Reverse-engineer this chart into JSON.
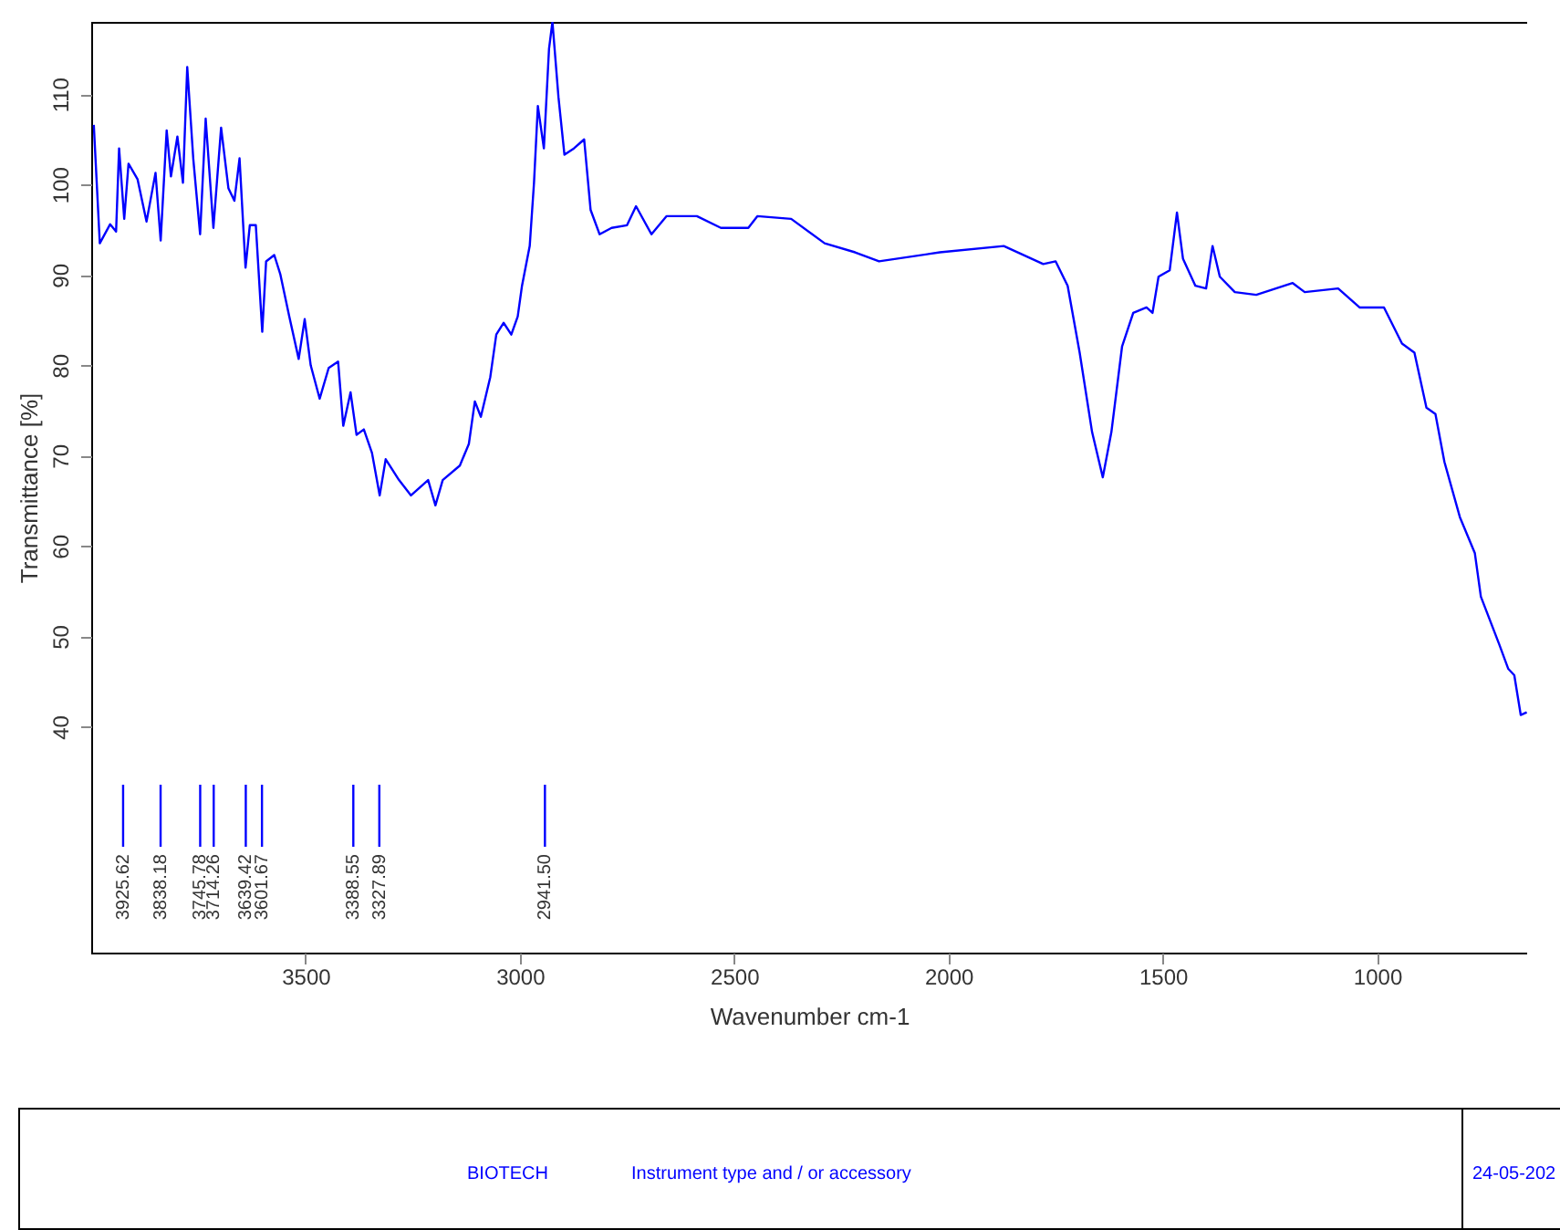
{
  "chart_data": {
    "type": "line",
    "xlabel": "Wavenumber cm-1",
    "ylabel": "Transmittance [%]",
    "xlim": [
      4000,
      650
    ],
    "ylim": [
      15,
      118
    ],
    "xticks": [
      3500,
      3000,
      2500,
      2000,
      1500,
      1000
    ],
    "yticks": [
      40,
      50,
      60,
      70,
      80,
      90,
      100,
      110
    ],
    "grid": false,
    "marker": "none",
    "line_style": "solid",
    "series": [
      {
        "color": "#0000ff",
        "x": [
          3994,
          3980,
          3956,
          3942,
          3935,
          3923,
          3913,
          3892,
          3871,
          3850,
          3838,
          3824,
          3814,
          3799,
          3786,
          3776,
          3762,
          3746,
          3733,
          3715,
          3697,
          3680,
          3666,
          3654,
          3640,
          3630,
          3616,
          3601,
          3592,
          3573,
          3559,
          3538,
          3516,
          3502,
          3488,
          3467,
          3446,
          3424,
          3412,
          3395,
          3381,
          3364,
          3345,
          3327,
          3313,
          3282,
          3254,
          3214,
          3197,
          3180,
          3140,
          3119,
          3105,
          3091,
          3069,
          3055,
          3038,
          3020,
          3005,
          2995,
          2977,
          2967,
          2958,
          2944,
          2932,
          2924,
          2910,
          2896,
          2874,
          2850,
          2835,
          2814,
          2786,
          2750,
          2729,
          2693,
          2658,
          2587,
          2531,
          2467,
          2446,
          2367,
          2289,
          2218,
          2162,
          2020,
          1871,
          1779,
          1750,
          1722,
          1694,
          1665,
          1640,
          1620,
          1595,
          1569,
          1538,
          1524,
          1510,
          1484,
          1467,
          1453,
          1424,
          1399,
          1384,
          1367,
          1332,
          1282,
          1197,
          1169,
          1091,
          1041,
          984,
          942,
          913,
          885,
          864,
          843,
          807,
          772,
          758,
          715,
          694,
          680,
          665,
          651
        ],
        "values": [
          106.6,
          93.5,
          95.6,
          94.8,
          104,
          96.2,
          102.3,
          100.6,
          95.9,
          101.3,
          93.8,
          106,
          100.9,
          105.3,
          100.2,
          113,
          102.9,
          94.5,
          107.3,
          95.2,
          106.3,
          99.6,
          98.2,
          102.9,
          90.8,
          95.5,
          95.5,
          83.7,
          91.5,
          92.2,
          90.1,
          85.4,
          80.7,
          85.1,
          80,
          76.3,
          79.7,
          80.4,
          73.3,
          77,
          72.3,
          72.9,
          70.3,
          65.6,
          69.6,
          67.3,
          65.6,
          67.3,
          64.5,
          67.3,
          68.9,
          71.3,
          76,
          74.3,
          78.7,
          83.4,
          84.7,
          83.4,
          85.4,
          88.8,
          93.2,
          100.2,
          108.7,
          104,
          115,
          118,
          109.7,
          103.3,
          104,
          105,
          97.2,
          94.5,
          95.2,
          95.5,
          97.6,
          94.5,
          96.5,
          96.5,
          95.2,
          95.2,
          96.5,
          96.2,
          93.5,
          92.5,
          91.5,
          92.5,
          93.2,
          91.2,
          91.5,
          88.8,
          81.4,
          72.6,
          67.6,
          72.6,
          82.1,
          85.8,
          86.4,
          85.8,
          89.8,
          90.5,
          96.9,
          91.8,
          88.8,
          88.5,
          93.2,
          89.8,
          88.1,
          87.8,
          89.1,
          88.1,
          88.5,
          86.4,
          86.4,
          82.4,
          81.4,
          75.3,
          74.6,
          69.3,
          63.2,
          59.2,
          54.4,
          49.1,
          46.4,
          45.7,
          41.3,
          41.6
        ]
      }
    ],
    "annotations": [
      {
        "text": "3925.62",
        "x": 3925.62
      },
      {
        "text": "3838.18",
        "x": 3838.18
      },
      {
        "text": "3745.78",
        "x": 3745.78
      },
      {
        "text": "3714.26",
        "x": 3714.26
      },
      {
        "text": "3639.42",
        "x": 3639.42
      },
      {
        "text": "3601.67",
        "x": 3601.67
      },
      {
        "text": "3388.55",
        "x": 3388.55
      },
      {
        "text": "3327.89",
        "x": 3327.89
      },
      {
        "text": "2941.50",
        "x": 2941.5
      },
      "BIOTECH",
      "Instrument type and / or accessory",
      "24-05-202"
    ]
  }
}
